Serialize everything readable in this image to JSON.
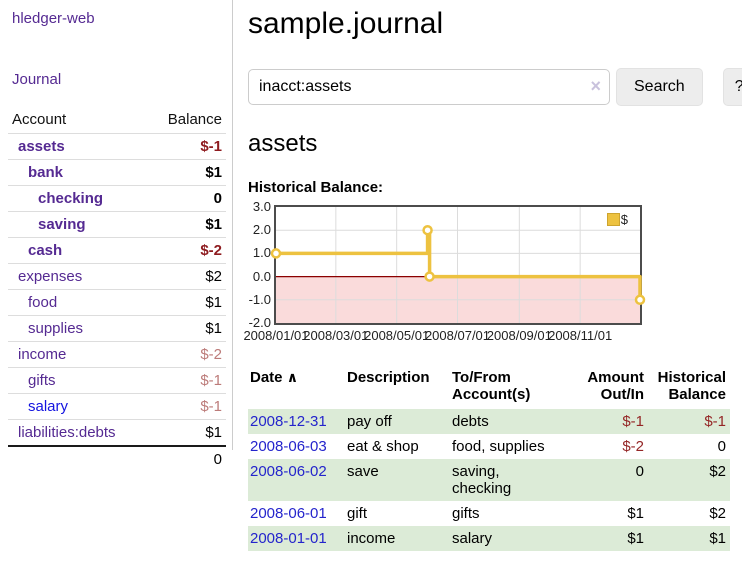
{
  "app_title": "hledger-web",
  "colors": {
    "accent_purple": "#552a92",
    "link_blue": "#2424cc",
    "negative_red": "#942626",
    "soft_negative_red": "#bc7b79",
    "row_stripe_green": "#dcebd7",
    "chart_line_yellow": "#edc240",
    "chart_negative_region": "#fadbdb",
    "chart_zero_line": "#8b0000"
  },
  "sidebar": {
    "journal_link": "Journal",
    "accounts_table": {
      "col_account": "Account",
      "col_balance": "Balance",
      "rows": [
        {
          "account": "assets",
          "balance": "$-1",
          "indent": 1,
          "bold": true,
          "neg": "strong"
        },
        {
          "account": "bank",
          "balance": "$1",
          "indent": 2,
          "bold": true,
          "neg": "none"
        },
        {
          "account": "checking",
          "balance": "0",
          "indent": 3,
          "bold": true,
          "neg": "none"
        },
        {
          "account": "saving",
          "balance": "$1",
          "indent": 3,
          "bold": true,
          "neg": "none"
        },
        {
          "account": "cash",
          "balance": "$-2",
          "indent": 2,
          "bold": true,
          "neg": "strong"
        },
        {
          "account": "expenses",
          "balance": "$2",
          "indent": 1,
          "bold": false,
          "neg": "none"
        },
        {
          "account": "food",
          "balance": "$1",
          "indent": 2,
          "bold": false,
          "neg": "none"
        },
        {
          "account": "supplies",
          "balance": "$1",
          "indent": 2,
          "bold": false,
          "neg": "none"
        },
        {
          "account": "income",
          "balance": "$-2",
          "indent": 1,
          "bold": false,
          "neg": "soft"
        },
        {
          "account": "gifts",
          "balance": "$-1",
          "indent": 2,
          "bold": false,
          "neg": "soft"
        },
        {
          "account": "salary",
          "balance": "$-1",
          "indent": 2,
          "bold": false,
          "neg": "soft",
          "link_color": "blue"
        },
        {
          "account": "liabilities:debts",
          "balance": "$1",
          "indent": 1,
          "bold": false,
          "neg": "none"
        }
      ],
      "total": "0"
    }
  },
  "header": {
    "title": "sample.journal"
  },
  "search": {
    "value": "inacct:assets",
    "clear_icon": "×",
    "search_button": "Search",
    "help_button": "?"
  },
  "account_page": {
    "heading": "assets",
    "chart_title": "Historical Balance:"
  },
  "chart_data": {
    "type": "line",
    "step": true,
    "title": "Historical Balance",
    "x": [
      "2008-01-01",
      "2008-06-01",
      "2008-06-03",
      "2008-12-31"
    ],
    "series": [
      {
        "name": "$",
        "values": [
          1,
          2,
          0,
          -1
        ],
        "color": "#edc240"
      }
    ],
    "xrange": [
      "2008-01-01",
      "2008-12-31"
    ],
    "ylim": [
      -2,
      3
    ],
    "yticks": [
      3.0,
      2.0,
      1.0,
      0.0,
      -1.0,
      -2.0
    ],
    "xticks": [
      "2008/01/01",
      "2008/03/01",
      "2008/05/01",
      "2008/07/01",
      "2008/09/01",
      "2008/11/01"
    ],
    "grid": true,
    "legend_position": "top-right",
    "negative_region_color": "#fadbdb",
    "zero_line_color": "#8b0000",
    "grid_color": "#dcdcdc"
  },
  "register": {
    "headers": {
      "date": "Date",
      "sort_icon": "∧",
      "description": "Description",
      "accounts": "To/From Account(s)",
      "amount": "Amount Out/In",
      "balance": "Historical Balance"
    },
    "rows": [
      {
        "date": "2008-12-31",
        "description": "pay off",
        "accounts": "debts",
        "amount": "$-1",
        "balance": "$-1",
        "amount_neg": true,
        "balance_neg": true,
        "shaded": true
      },
      {
        "date": "2008-06-03",
        "description": "eat & shop",
        "accounts": "food, supplies",
        "amount": "$-2",
        "balance": "0",
        "amount_neg": true,
        "balance_neg": false,
        "shaded": false
      },
      {
        "date": "2008-06-02",
        "description": "save",
        "accounts": "saving,\nchecking",
        "amount": "0",
        "balance": "$2",
        "amount_neg": false,
        "balance_neg": false,
        "shaded": true
      },
      {
        "date": "2008-06-01",
        "description": "gift",
        "accounts": "gifts",
        "amount": "$1",
        "balance": "$2",
        "amount_neg": false,
        "balance_neg": false,
        "shaded": false
      },
      {
        "date": "2008-01-01",
        "description": "income",
        "accounts": "salary",
        "amount": "$1",
        "balance": "$1",
        "amount_neg": false,
        "balance_neg": false,
        "shaded": true
      }
    ]
  }
}
